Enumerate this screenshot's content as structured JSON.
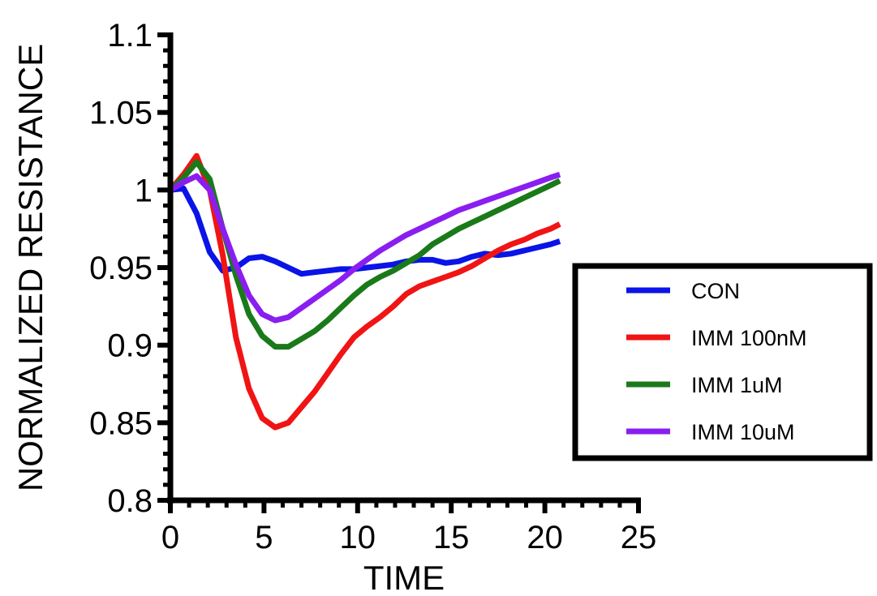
{
  "chart_data": {
    "type": "line",
    "title": "",
    "xlabel": "TIME",
    "ylabel": "NORMALIZED RESISTANCE",
    "xlim": [
      0,
      25
    ],
    "ylim": [
      0.8,
      1.1
    ],
    "x_ticks": [
      "0",
      "5",
      "10",
      "15",
      "20",
      "25"
    ],
    "y_ticks": [
      "0.8",
      "0.85",
      "0.9",
      "0.95",
      "1",
      "1.05",
      "1.1"
    ],
    "grid": false,
    "legend_position": "right",
    "x": [
      0,
      0.7,
      1.4,
      2.1,
      2.8,
      3.5,
      4.2,
      4.9,
      5.6,
      6.3,
      7.0,
      7.7,
      8.4,
      9.1,
      9.8,
      10.5,
      11.2,
      11.9,
      12.6,
      13.3,
      14.0,
      14.7,
      15.4,
      16.1,
      16.8,
      17.5,
      18.2,
      18.9,
      19.6,
      20.3,
      20.8
    ],
    "series": [
      {
        "name": "CON",
        "color": "#0a14e6",
        "values": [
          1.0,
          1.001,
          0.985,
          0.96,
          0.948,
          0.95,
          0.956,
          0.957,
          0.954,
          0.95,
          0.946,
          0.947,
          0.948,
          0.949,
          0.949,
          0.95,
          0.951,
          0.952,
          0.954,
          0.955,
          0.955,
          0.953,
          0.954,
          0.957,
          0.959,
          0.958,
          0.959,
          0.961,
          0.963,
          0.965,
          0.967
        ]
      },
      {
        "name": "IMM 100nM",
        "color": "#f01414",
        "values": [
          1.0,
          1.01,
          1.022,
          1.0,
          0.958,
          0.905,
          0.872,
          0.853,
          0.847,
          0.85,
          0.86,
          0.87,
          0.882,
          0.894,
          0.905,
          0.912,
          0.918,
          0.925,
          0.933,
          0.938,
          0.941,
          0.944,
          0.947,
          0.951,
          0.956,
          0.961,
          0.965,
          0.968,
          0.972,
          0.975,
          0.978
        ]
      },
      {
        "name": "IMM 1uM",
        "color": "#1a7a1a",
        "values": [
          1.0,
          1.008,
          1.018,
          1.007,
          0.975,
          0.945,
          0.92,
          0.906,
          0.899,
          0.899,
          0.904,
          0.909,
          0.916,
          0.924,
          0.932,
          0.939,
          0.944,
          0.948,
          0.953,
          0.958,
          0.965,
          0.97,
          0.975,
          0.979,
          0.983,
          0.987,
          0.991,
          0.995,
          0.999,
          1.003,
          1.006
        ]
      },
      {
        "name": "IMM 10uM",
        "color": "#8a1ef0",
        "values": [
          1.0,
          1.005,
          1.009,
          1.0,
          0.975,
          0.952,
          0.932,
          0.92,
          0.916,
          0.918,
          0.924,
          0.93,
          0.936,
          0.942,
          0.949,
          0.955,
          0.961,
          0.966,
          0.971,
          0.975,
          0.979,
          0.983,
          0.987,
          0.99,
          0.993,
          0.996,
          0.999,
          1.002,
          1.005,
          1.008,
          1.01
        ]
      }
    ]
  }
}
